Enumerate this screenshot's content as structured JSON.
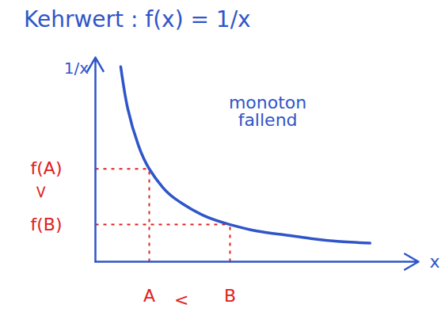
{
  "chart_data": {
    "type": "line",
    "title": "Kehrwert : f(x) = 1/x",
    "x_label": "x",
    "y_label": "1/x",
    "x": [
      0.47,
      0.6,
      0.8,
      1,
      1.25,
      1.5,
      2,
      2.5,
      3,
      3.5,
      4,
      4.5,
      5.1
    ],
    "values": [
      2.1,
      1.65,
      1.25,
      1,
      0.8,
      0.67,
      0.5,
      0.4,
      0.33,
      0.29,
      0.25,
      0.22,
      0.2
    ],
    "color": "#2f55c9",
    "xlim": [
      0,
      6
    ],
    "ylim": [
      0,
      2.2
    ],
    "xticks": [
      {
        "value": 1,
        "label": "A"
      },
      {
        "value": 2.5,
        "label": "B"
      }
    ],
    "yticks": [
      {
        "value": 1,
        "label": "f(A)"
      },
      {
        "value": 0.4,
        "label": "f(B)"
      }
    ],
    "grid": false,
    "annotations": [
      {
        "text": "monoton fallend",
        "x": 3.2,
        "y": 1.62,
        "color": "#2f55c9"
      },
      {
        "text": "<",
        "x": 1.6,
        "y": -0.41,
        "color": "#e02020"
      },
      {
        "text": ">",
        "x": -1.0,
        "y": 0.75,
        "color": "#e02020"
      }
    ]
  }
}
